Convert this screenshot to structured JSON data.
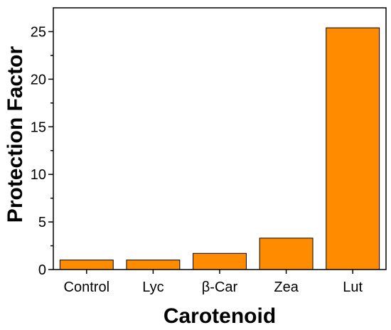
{
  "chart_data": {
    "type": "bar",
    "categories": [
      "Control",
      "Lyc",
      "β-Car",
      "Zea",
      "Lut"
    ],
    "values": [
      1.0,
      1.0,
      1.7,
      3.3,
      25.4
    ],
    "xlabel": "Carotenoid",
    "ylabel": "Protection Factor",
    "ylim": [
      0,
      27.5
    ],
    "yticks": [
      0,
      5,
      10,
      15,
      20,
      25
    ],
    "grid": false,
    "legend": "none",
    "bar_color": "#FF8C00",
    "bar_edge_color": "#000000"
  }
}
